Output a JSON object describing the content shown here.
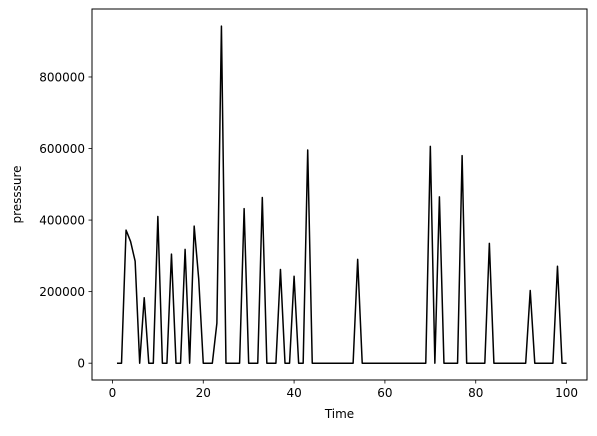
{
  "chart_data": {
    "type": "line",
    "title": "",
    "xlabel": "Time",
    "ylabel": "presssure",
    "xlim": [
      -4.5,
      104.5
    ],
    "ylim": [
      -47000,
      990000
    ],
    "x_ticks": [
      0,
      20,
      40,
      60,
      80,
      100
    ],
    "y_ticks": [
      0,
      200000,
      400000,
      600000,
      800000
    ],
    "x_tick_labels": [
      "0",
      "20",
      "40",
      "60",
      "80",
      "100"
    ],
    "y_tick_labels": [
      "0",
      "200000",
      "400000",
      "600000",
      "800000"
    ],
    "grid": false,
    "legend": "none",
    "series": [
      {
        "color": "#000000",
        "x": [
          1,
          2,
          3,
          4,
          5,
          6,
          7,
          8,
          9,
          10,
          11,
          12,
          13,
          14,
          15,
          16,
          17,
          18,
          19,
          20,
          21,
          22,
          23,
          24,
          25,
          26,
          27,
          28,
          29,
          30,
          31,
          32,
          33,
          34,
          35,
          36,
          37,
          38,
          39,
          40,
          41,
          42,
          43,
          44,
          45,
          46,
          47,
          48,
          49,
          50,
          51,
          52,
          53,
          54,
          55,
          56,
          57,
          58,
          59,
          60,
          61,
          62,
          63,
          64,
          65,
          66,
          67,
          68,
          69,
          70,
          71,
          72,
          73,
          74,
          75,
          76,
          77,
          78,
          79,
          80,
          81,
          82,
          83,
          84,
          85,
          86,
          87,
          88,
          89,
          90,
          91,
          92,
          93,
          94,
          95,
          96,
          97,
          98,
          99,
          100
        ],
        "y": [
          0,
          0,
          372000,
          340000,
          285000,
          0,
          183000,
          0,
          0,
          410000,
          0,
          0,
          305000,
          0,
          0,
          318000,
          0,
          383000,
          235000,
          0,
          0,
          0,
          112000,
          942000,
          0,
          0,
          0,
          0,
          432000,
          0,
          0,
          0,
          463000,
          0,
          0,
          0,
          262000,
          0,
          0,
          243000,
          0,
          0,
          596000,
          0,
          0,
          0,
          0,
          0,
          0,
          0,
          0,
          0,
          0,
          290000,
          0,
          0,
          0,
          0,
          0,
          0,
          0,
          0,
          0,
          0,
          0,
          0,
          0,
          0,
          0,
          606000,
          0,
          465000,
          0,
          0,
          0,
          0,
          580000,
          0,
          0,
          0,
          0,
          0,
          335000,
          0,
          0,
          0,
          0,
          0,
          0,
          0,
          0,
          203000,
          0,
          0,
          0,
          0,
          0,
          271000,
          0,
          0
        ]
      }
    ]
  }
}
